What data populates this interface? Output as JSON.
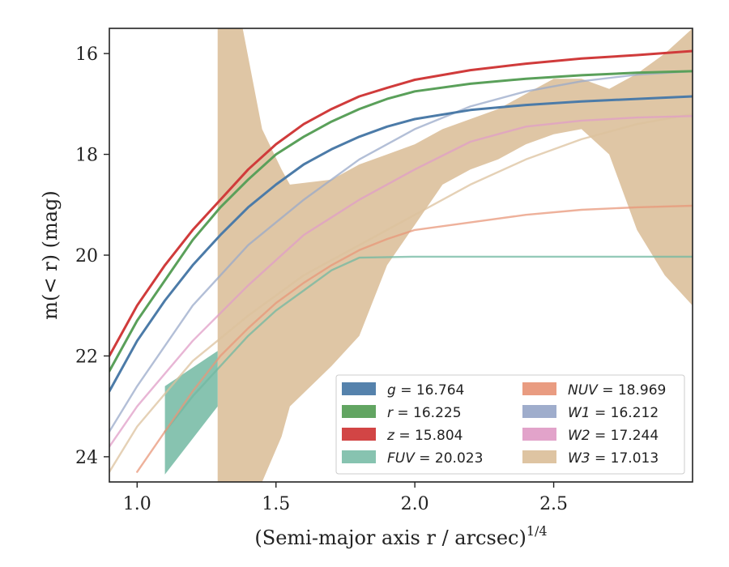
{
  "chart_data": {
    "type": "line",
    "xlabel": "(Semi-major axis r / arcsec)",
    "xlabel_superscript": "1/4",
    "ylabel": "m(< r) (mag)",
    "xlim": [
      0.9,
      3.0
    ],
    "ylim": [
      24.5,
      15.5
    ],
    "y_inverted": true,
    "xticks": [
      1.0,
      1.5,
      2.0,
      2.5
    ],
    "xtick_labels": [
      "1.0",
      "1.5",
      "2.0",
      "2.5"
    ],
    "yticks": [
      16,
      18,
      20,
      22,
      24
    ],
    "ytick_labels": [
      "16",
      "18",
      "20",
      "22",
      "24"
    ],
    "grid": false,
    "legend": {
      "placement": "lower-right",
      "columns": 2
    },
    "series": [
      {
        "key": "g",
        "name": "g = 16.764",
        "color": "#4c7ba8",
        "x": [
          0.9,
          1.0,
          1.1,
          1.2,
          1.3,
          1.4,
          1.5,
          1.6,
          1.7,
          1.8,
          1.9,
          2.0,
          2.2,
          2.4,
          2.6,
          2.8,
          3.0
        ],
        "y": [
          22.7,
          21.7,
          20.9,
          20.2,
          19.6,
          19.05,
          18.6,
          18.2,
          17.9,
          17.65,
          17.45,
          17.3,
          17.12,
          17.02,
          16.95,
          16.9,
          16.85
        ]
      },
      {
        "key": "r",
        "name": "r = 16.225",
        "color": "#5aa05a",
        "x": [
          0.9,
          1.0,
          1.1,
          1.2,
          1.3,
          1.4,
          1.5,
          1.6,
          1.7,
          1.8,
          1.9,
          2.0,
          2.2,
          2.4,
          2.6,
          2.8,
          3.0
        ],
        "y": [
          22.3,
          21.3,
          20.5,
          19.7,
          19.05,
          18.5,
          18.0,
          17.65,
          17.35,
          17.1,
          16.9,
          16.75,
          16.6,
          16.5,
          16.43,
          16.38,
          16.35
        ]
      },
      {
        "key": "z",
        "name": "z = 15.804",
        "color": "#d03b3b",
        "x": [
          0.9,
          1.0,
          1.1,
          1.2,
          1.3,
          1.4,
          1.5,
          1.6,
          1.7,
          1.8,
          1.9,
          2.0,
          2.2,
          2.4,
          2.6,
          2.8,
          3.0
        ],
        "y": [
          22.0,
          21.0,
          20.2,
          19.5,
          18.9,
          18.3,
          17.8,
          17.4,
          17.1,
          16.85,
          16.68,
          16.52,
          16.33,
          16.2,
          16.1,
          16.03,
          15.95
        ]
      },
      {
        "key": "FUV",
        "name": "FUV = 20.023",
        "color": "#72b8a2",
        "x": [
          1.1,
          1.2,
          1.3,
          1.4,
          1.5,
          1.6,
          1.7,
          1.8,
          2.0,
          2.5,
          3.0
        ],
        "y": [
          23.5,
          22.8,
          22.2,
          21.6,
          21.1,
          20.7,
          20.3,
          20.05,
          20.03,
          20.03,
          20.03
        ],
        "band_x": [
          1.1,
          1.29
        ],
        "band_lo": [
          22.6,
          21.9
        ],
        "band_hi": [
          24.35,
          23.0
        ]
      },
      {
        "key": "NUV",
        "name": "NUV = 18.969",
        "color": "#e8977a",
        "x": [
          1.0,
          1.1,
          1.2,
          1.3,
          1.4,
          1.5,
          1.6,
          1.7,
          1.8,
          1.9,
          2.0,
          2.2,
          2.4,
          2.6,
          2.8,
          3.0
        ],
        "y": [
          24.3,
          23.5,
          22.7,
          22.0,
          21.45,
          20.95,
          20.55,
          20.2,
          19.9,
          19.68,
          19.5,
          19.35,
          19.2,
          19.1,
          19.05,
          19.02
        ]
      },
      {
        "key": "W1",
        "name": "W1 = 16.212",
        "color": "#9aa9c9",
        "x": [
          0.9,
          1.0,
          1.2,
          1.4,
          1.6,
          1.8,
          2.0,
          2.2,
          2.4,
          2.6,
          2.8,
          3.0
        ],
        "y": [
          23.5,
          22.6,
          21.0,
          19.8,
          18.9,
          18.1,
          17.5,
          17.05,
          16.75,
          16.55,
          16.42,
          16.35
        ]
      },
      {
        "key": "W2",
        "name": "W2 = 17.244",
        "color": "#e09ec7",
        "x": [
          0.9,
          1.0,
          1.2,
          1.4,
          1.6,
          1.8,
          2.0,
          2.2,
          2.4,
          2.6,
          2.8,
          3.0
        ],
        "y": [
          23.8,
          23.0,
          21.7,
          20.6,
          19.6,
          18.9,
          18.3,
          17.75,
          17.45,
          17.33,
          17.27,
          17.24
        ]
      },
      {
        "key": "W3",
        "name": "W3 = 17.013",
        "color": "#dcc19d",
        "x": [
          0.9,
          1.0,
          1.2,
          1.4,
          1.6,
          1.8,
          2.0,
          2.2,
          2.4,
          2.6,
          2.8,
          3.0
        ],
        "y": [
          24.3,
          23.4,
          22.1,
          21.2,
          20.4,
          19.8,
          19.2,
          18.6,
          18.1,
          17.7,
          17.4,
          17.2
        ],
        "band_x": [
          1.29,
          1.29,
          1.38,
          1.45,
          1.52,
          1.55,
          1.7,
          1.8,
          1.9,
          2.0,
          2.1,
          2.2,
          2.3,
          2.4,
          2.5,
          2.6,
          2.7,
          2.8,
          2.9,
          3.0
        ],
        "band_lo": [
          15.5,
          15.5,
          15.5,
          17.5,
          18.3,
          18.6,
          18.5,
          18.2,
          18.0,
          17.8,
          17.5,
          17.3,
          17.1,
          16.8,
          16.5,
          16.5,
          16.7,
          16.4,
          16.0,
          15.5
        ],
        "band_hi": [
          24.5,
          24.5,
          24.5,
          24.5,
          23.6,
          23.0,
          22.2,
          21.6,
          20.2,
          19.4,
          18.6,
          18.3,
          18.1,
          17.8,
          17.6,
          17.5,
          18.0,
          19.5,
          20.4,
          21.0
        ]
      }
    ]
  }
}
